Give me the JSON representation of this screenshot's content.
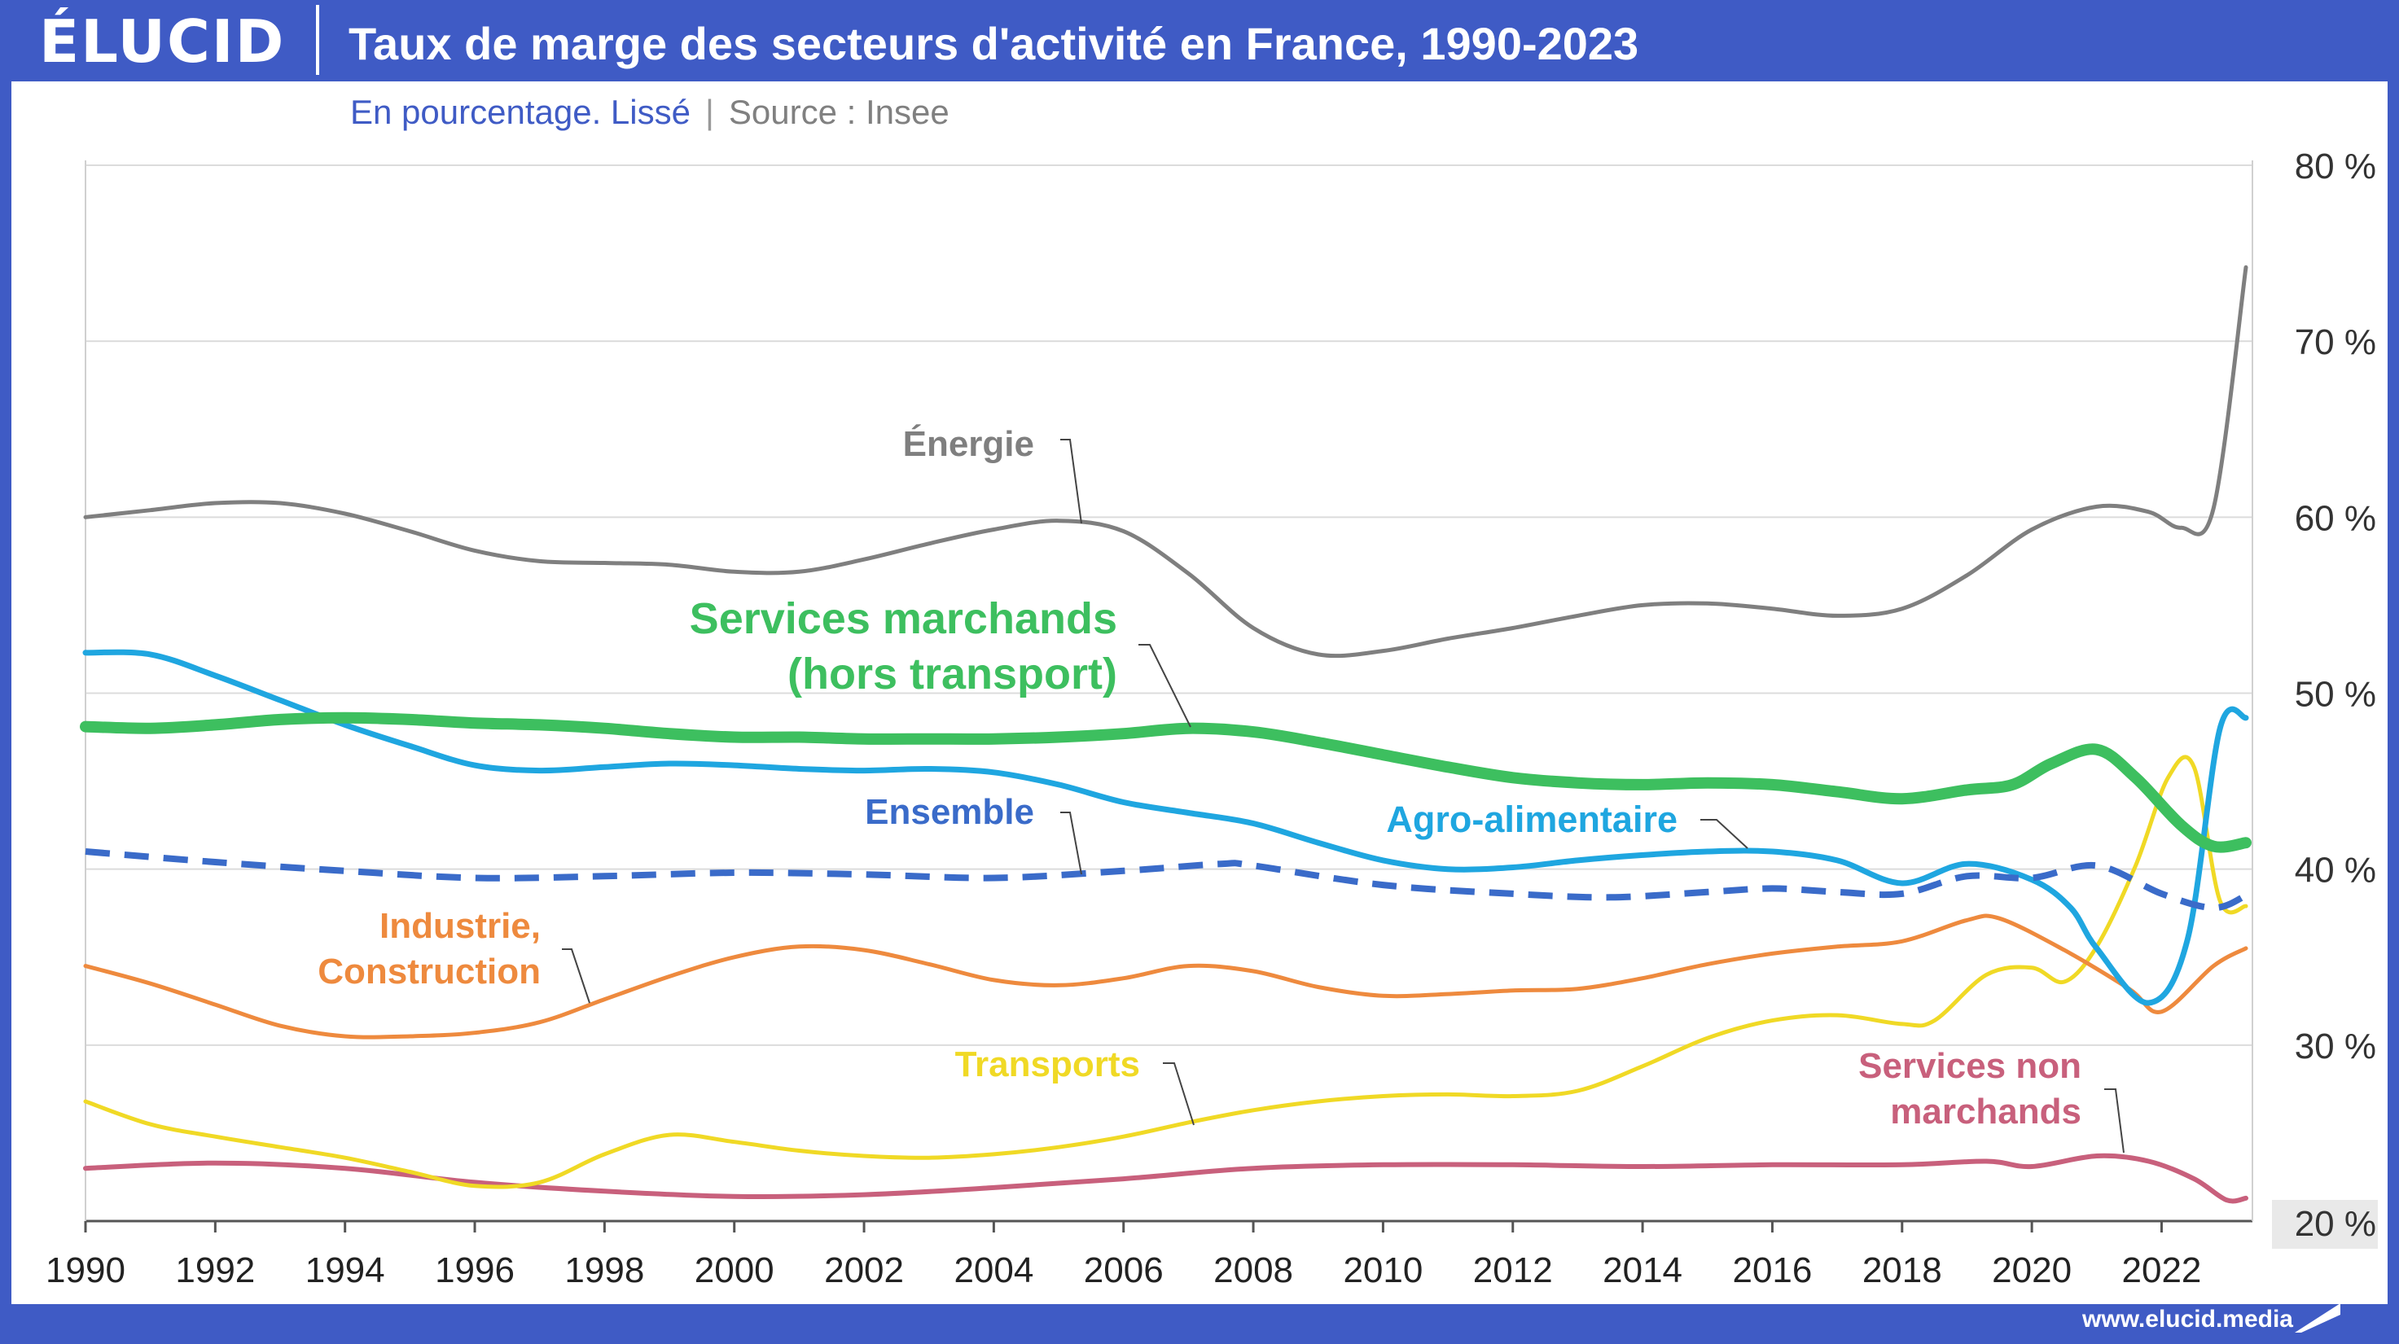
{
  "header": {
    "logo": "ÉLUCID",
    "title": "Taux de marge des secteurs d'activité en France, 1990-2023"
  },
  "subtitle": "En pourcentage. Lissé",
  "source": "Source : Insee",
  "footer": {
    "url": "www.elucid.media"
  },
  "colors": {
    "header_bg": "#3f5bc5",
    "energie": "#7f7f7f",
    "services_marchands": "#3dbf5f",
    "agro": "#1fa6e0",
    "ensemble": "#3a6bc9",
    "industrie": "#ee8a3e",
    "transports": "#f0d925",
    "services_non_marchands": "#c8607c"
  },
  "chart_data": {
    "type": "line",
    "title": "Taux de marge des secteurs d'activité en France, 1990-2023",
    "subtitle": "En pourcentage. Lissé",
    "xlim": [
      1990,
      2023.4
    ],
    "ylim": [
      20,
      80
    ],
    "x_ticks": [
      1990,
      1992,
      1994,
      1996,
      1998,
      2000,
      2002,
      2004,
      2006,
      2008,
      2010,
      2012,
      2014,
      2016,
      2018,
      2020,
      2022
    ],
    "y_ticks": [
      {
        "value": 80,
        "label": "80 %"
      },
      {
        "value": 70,
        "label": "70 %"
      },
      {
        "value": 60,
        "label": "60 %"
      },
      {
        "value": 50,
        "label": "50 %"
      },
      {
        "value": 40,
        "label": "40 %"
      },
      {
        "value": 30,
        "label": "30 %"
      },
      {
        "value": 20,
        "label": "20 %"
      }
    ],
    "grid": true,
    "y_axis_position": "right",
    "series": [
      {
        "name": "Énergie",
        "label_lines": [
          "Énergie"
        ],
        "color": "#7f7f7f",
        "width": 5,
        "dashed": false,
        "x": [
          1990,
          1991,
          1992,
          1993,
          1994,
          1995,
          1996,
          1997,
          1998,
          1999,
          2000,
          2001,
          2002,
          2003,
          2004,
          2005,
          2006,
          2007,
          2008,
          2009,
          2010,
          2011,
          2012,
          2013,
          2014,
          2015,
          2016,
          2017,
          2018,
          2019,
          2020,
          2021,
          2021.8,
          2022.3,
          2022.8,
          2023.3
        ],
        "y": [
          60,
          60.4,
          60.8,
          60.8,
          60.2,
          59.2,
          58.1,
          57.5,
          57.4,
          57.3,
          56.9,
          56.9,
          57.6,
          58.5,
          59.3,
          59.8,
          59.2,
          56.8,
          53.7,
          52.2,
          52.4,
          53.1,
          53.7,
          54.4,
          55,
          55.1,
          54.8,
          54.4,
          54.8,
          56.7,
          59.3,
          60.6,
          60.3,
          59.4,
          60.5,
          74.2
        ]
      },
      {
        "name": "Services marchands (hors transport)",
        "label_lines": [
          "Services marchands",
          "(hors transport)"
        ],
        "color": "#3dbf5f",
        "width": 14,
        "dashed": false,
        "x": [
          1990,
          1991,
          1992,
          1993,
          1994,
          1995,
          1996,
          1997,
          1998,
          1999,
          2000,
          2001,
          2002,
          2003,
          2004,
          2005,
          2006,
          2007,
          2008,
          2009,
          2010,
          2011,
          2012,
          2013,
          2014,
          2015,
          2016,
          2017,
          2018,
          2019,
          2019.7,
          2020.3,
          2021,
          2021.6,
          2022.3,
          2022.8,
          2023.3
        ],
        "y": [
          48.1,
          48,
          48.2,
          48.5,
          48.6,
          48.5,
          48.3,
          48.2,
          48,
          47.7,
          47.5,
          47.5,
          47.4,
          47.4,
          47.4,
          47.5,
          47.7,
          48,
          47.8,
          47.2,
          46.5,
          45.8,
          45.2,
          44.9,
          44.8,
          44.9,
          44.8,
          44.4,
          44,
          44.5,
          44.8,
          46,
          46.8,
          45.2,
          42.5,
          41.3,
          41.5
        ]
      },
      {
        "name": "Agro-alimentaire",
        "label_lines": [
          "Agro-alimentaire"
        ],
        "color": "#1fa6e0",
        "width": 7,
        "dashed": false,
        "x": [
          1990,
          1991,
          1992,
          1993,
          1994,
          1995,
          1996,
          1997,
          1998,
          1999,
          2000,
          2001,
          2002,
          2003,
          2004,
          2005,
          2006,
          2007,
          2008,
          2009,
          2010,
          2011,
          2012,
          2013,
          2014,
          2015,
          2016,
          2017,
          2018,
          2019,
          2020,
          2020.6,
          2021,
          2021.8,
          2022.4,
          2022.9,
          2023.3
        ],
        "y": [
          52.3,
          52.2,
          51,
          49.6,
          48.2,
          47,
          45.9,
          45.6,
          45.8,
          46,
          45.9,
          45.7,
          45.6,
          45.7,
          45.5,
          44.8,
          43.8,
          43.2,
          42.6,
          41.5,
          40.5,
          40,
          40.1,
          40.5,
          40.8,
          41,
          41,
          40.5,
          39.2,
          40.3,
          39.4,
          37.8,
          35.5,
          32.4,
          36,
          48,
          48.6
        ]
      },
      {
        "name": "Ensemble",
        "label_lines": [
          "Ensemble"
        ],
        "color": "#3a6bc9",
        "width": 8,
        "dashed": true,
        "x": [
          1990,
          1992,
          1994,
          1996,
          1998,
          2000,
          2002,
          2004,
          2006,
          2007.5,
          2008,
          2010,
          2012,
          2013.5,
          2015,
          2016,
          2017,
          2018,
          2019,
          2020,
          2021,
          2022,
          2022.8,
          2023.3
        ],
        "y": [
          41,
          40.4,
          39.9,
          39.5,
          39.6,
          39.8,
          39.7,
          39.5,
          39.9,
          40.3,
          40.2,
          39.1,
          38.6,
          38.4,
          38.7,
          38.9,
          38.7,
          38.6,
          39.6,
          39.5,
          40.2,
          38.6,
          37.8,
          38.5
        ]
      },
      {
        "name": "Industrie, Construction",
        "label_lines": [
          "Industrie,",
          "Construction"
        ],
        "color": "#ee8a3e",
        "width": 5,
        "dashed": false,
        "x": [
          1990,
          1991,
          1992,
          1993,
          1994,
          1995,
          1996,
          1997,
          1998,
          1999,
          2000,
          2001,
          2002,
          2003,
          2004,
          2005,
          2006,
          2007,
          2008,
          2009,
          2010,
          2011,
          2012,
          2013,
          2014,
          2015,
          2016,
          2017,
          2018,
          2019,
          2019.5,
          2020.5,
          2021.5,
          2022,
          2022.8,
          2023.3
        ],
        "y": [
          34.5,
          33.5,
          32.3,
          31.1,
          30.5,
          30.5,
          30.7,
          31.3,
          32.6,
          33.9,
          35,
          35.6,
          35.4,
          34.6,
          33.7,
          33.4,
          33.8,
          34.5,
          34.2,
          33.3,
          32.8,
          32.9,
          33.1,
          33.2,
          33.8,
          34.6,
          35.2,
          35.6,
          35.9,
          37.1,
          37.2,
          35.4,
          33.2,
          31.9,
          34.5,
          35.5
        ]
      },
      {
        "name": "Transports",
        "label_lines": [
          "Transports"
        ],
        "color": "#f0d925",
        "width": 5,
        "dashed": false,
        "x": [
          1990,
          1991,
          1992,
          1993,
          1994,
          1995,
          1996,
          1997,
          1998,
          1999,
          2000,
          2001,
          2002,
          2003,
          2004,
          2005,
          2006,
          2007,
          2008,
          2009,
          2010,
          2011,
          2012,
          2013,
          2014,
          2015,
          2016,
          2017,
          2018,
          2018.5,
          2019.3,
          2020,
          2020.5,
          2021,
          2021.6,
          2022.1,
          2022.5,
          2022.9,
          2023.3
        ],
        "y": [
          26.8,
          25.5,
          24.8,
          24.2,
          23.6,
          22.8,
          22,
          22.2,
          23.8,
          24.9,
          24.5,
          24,
          23.7,
          23.6,
          23.8,
          24.2,
          24.8,
          25.6,
          26.3,
          26.8,
          27.1,
          27.2,
          27.1,
          27.4,
          28.8,
          30.4,
          31.4,
          31.7,
          31.2,
          31.4,
          34,
          34.4,
          33.6,
          35.6,
          40.2,
          45.2,
          45.8,
          38.2,
          37.9
        ]
      },
      {
        "name": "Services non marchands",
        "label_lines": [
          "Services non",
          "marchands"
        ],
        "color": "#c8607c",
        "width": 6,
        "dashed": false,
        "x": [
          1990,
          1992,
          1994,
          1996,
          1998,
          2000,
          2002,
          2004,
          2006,
          2008,
          2010,
          2012,
          2014,
          2016,
          2018,
          2019.3,
          2020,
          2021,
          2021.8,
          2022.5,
          2023,
          2023.3
        ],
        "y": [
          23,
          23.3,
          23,
          22.2,
          21.7,
          21.4,
          21.5,
          21.9,
          22.4,
          23,
          23.2,
          23.2,
          23.1,
          23.2,
          23.2,
          23.4,
          23.1,
          23.7,
          23.4,
          22.4,
          21.2,
          21.3
        ]
      }
    ]
  }
}
